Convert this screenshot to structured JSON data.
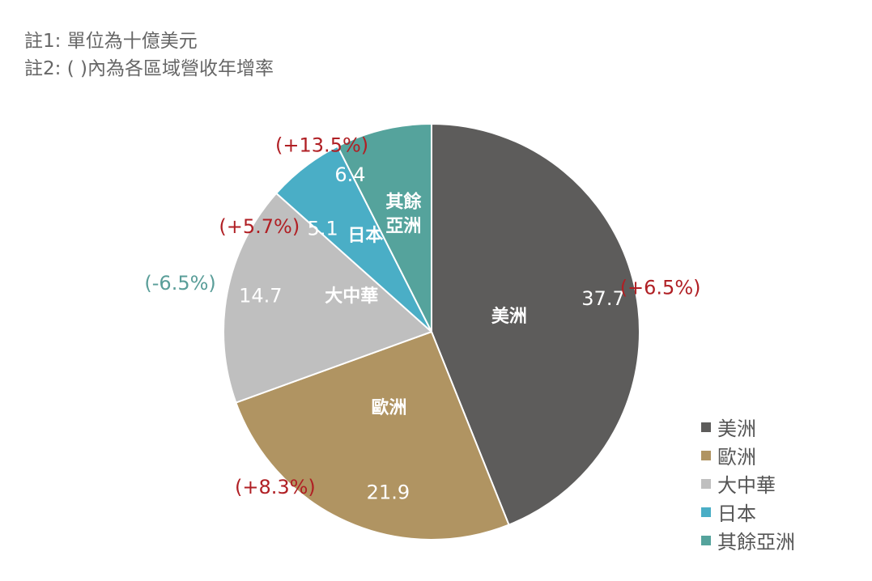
{
  "notes": {
    "line1": "註1: 單位為十億美元",
    "line2": "註2: ( )內為各區域營收年增率"
  },
  "chart_data": {
    "type": "pie",
    "title": "",
    "start": "12-o'clock",
    "direction": "clockwise",
    "legend_position": "bottom-right",
    "slices": [
      {
        "name": "美洲",
        "value": 37.7,
        "value_label": "37.7",
        "growth_label": "(+6.5%)",
        "color": "#5d5c5b",
        "growth_color": "#b01f24"
      },
      {
        "name": "歐洲",
        "value": 21.9,
        "value_label": "21.9",
        "growth_label": "(+8.3%)",
        "color": "#b09462",
        "growth_color": "#b01f24"
      },
      {
        "name": "大中華",
        "value": 14.7,
        "value_label": "14.7",
        "growth_label": "(-6.5%)",
        "color": "#bfbfbf",
        "growth_color": "#5a9e99"
      },
      {
        "name": "日本",
        "value": 5.1,
        "value_label": "5.1",
        "growth_label": "(+5.7%)",
        "color": "#4aaec6",
        "growth_color": "#b01f24"
      },
      {
        "name": "其餘亞洲",
        "value": 6.4,
        "value_label": "6.4",
        "growth_label": "(+13.5%)",
        "color": "#55a39c",
        "growth_color": "#b01f24"
      }
    ]
  }
}
